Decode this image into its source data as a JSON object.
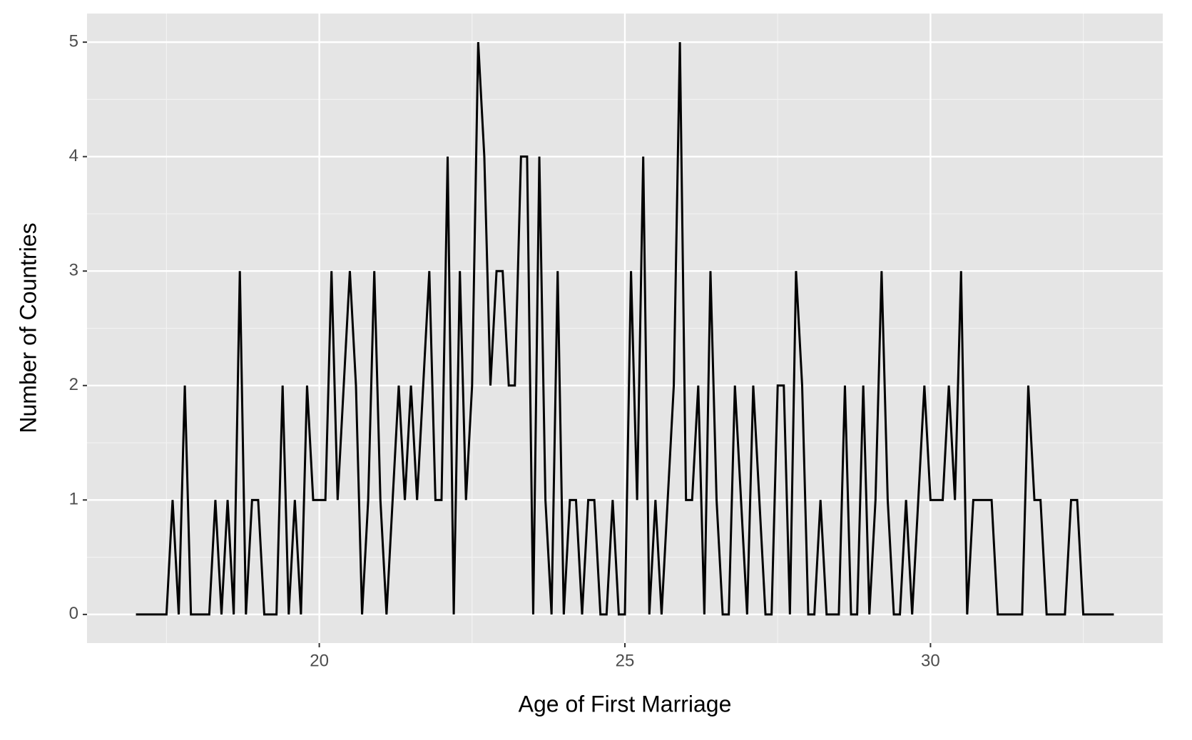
{
  "chart_data": {
    "type": "line",
    "x_label": "Age of First Marriage",
    "y_label": "Number of Countries",
    "x": [
      17,
      17.1,
      17.2,
      17.3,
      17.4,
      17.5,
      17.6,
      17.7,
      17.8,
      17.9,
      18,
      18.1,
      18.2,
      18.3,
      18.4,
      18.5,
      18.6,
      18.7,
      18.8,
      18.9,
      19,
      19.1,
      19.2,
      19.3,
      19.4,
      19.5,
      19.6,
      19.7,
      19.8,
      19.9,
      20,
      20.1,
      20.2,
      20.3,
      20.4,
      20.5,
      20.6,
      20.7,
      20.8,
      20.9,
      21,
      21.1,
      21.2,
      21.3,
      21.4,
      21.5,
      21.6,
      21.7,
      21.8,
      21.9,
      22,
      22.1,
      22.2,
      22.3,
      22.4,
      22.5,
      22.6,
      22.7,
      22.8,
      22.9,
      23,
      23.1,
      23.2,
      23.3,
      23.4,
      23.5,
      23.6,
      23.7,
      23.8,
      23.9,
      24,
      24.1,
      24.2,
      24.3,
      24.4,
      24.5,
      24.6,
      24.7,
      24.8,
      24.9,
      25,
      25.1,
      25.2,
      25.3,
      25.4,
      25.5,
      25.6,
      25.7,
      25.8,
      25.9,
      26,
      26.1,
      26.2,
      26.3,
      26.4,
      26.5,
      26.6,
      26.7,
      26.8,
      26.9,
      27,
      27.1,
      27.2,
      27.3,
      27.4,
      27.5,
      27.6,
      27.7,
      27.8,
      27.9,
      28,
      28.1,
      28.2,
      28.3,
      28.4,
      28.5,
      28.6,
      28.7,
      28.8,
      28.9,
      29,
      29.1,
      29.2,
      29.3,
      29.4,
      29.5,
      29.6,
      29.7,
      29.8,
      29.9,
      30,
      30.1,
      30.2,
      30.3,
      30.4,
      30.5,
      30.6,
      30.7,
      30.8,
      30.9,
      31,
      31.1,
      31.2,
      31.3,
      31.4,
      31.5,
      31.6,
      31.7,
      31.8,
      31.9,
      32,
      32.1,
      32.2,
      32.3,
      32.4,
      32.5,
      32.6,
      32.7,
      32.8,
      32.9,
      33
    ],
    "values": [
      0,
      0,
      0,
      0,
      0,
      0,
      1,
      0,
      2,
      0,
      0,
      0,
      0,
      1,
      0,
      1,
      0,
      3,
      0,
      1,
      1,
      0,
      0,
      0,
      2,
      0,
      1,
      0,
      2,
      1,
      1,
      1,
      3,
      1,
      2,
      3,
      2,
      0,
      1,
      3,
      1,
      0,
      1,
      2,
      1,
      2,
      1,
      2,
      3,
      1,
      1,
      4,
      0,
      3,
      1,
      2,
      5,
      4,
      2,
      3,
      3,
      2,
      2,
      4,
      4,
      0,
      4,
      1,
      0,
      3,
      0,
      1,
      1,
      0,
      1,
      1,
      0,
      0,
      1,
      0,
      0,
      3,
      1,
      4,
      0,
      1,
      0,
      1,
      2,
      5,
      1,
      1,
      2,
      0,
      3,
      1,
      0,
      0,
      2,
      1,
      0,
      2,
      1,
      0,
      0,
      2,
      2,
      0,
      3,
      2,
      0,
      0,
      1,
      0,
      0,
      0,
      2,
      0,
      0,
      2,
      0,
      1,
      3,
      1,
      0,
      0,
      1,
      0,
      1,
      2,
      1,
      1,
      1,
      2,
      1,
      3,
      0,
      1,
      1,
      1,
      1,
      0,
      0,
      0,
      0,
      0,
      2,
      1,
      1,
      0,
      0,
      0,
      0,
      1,
      1,
      0,
      0,
      0,
      0,
      0,
      0
    ],
    "color": "#000000",
    "xlim": [
      16.2,
      33.8
    ],
    "xticks": [
      20,
      25,
      30
    ],
    "ylim": [
      -0.25,
      5.25
    ],
    "yticks": [
      0,
      1,
      2,
      3,
      4,
      5
    ],
    "grid": true
  }
}
